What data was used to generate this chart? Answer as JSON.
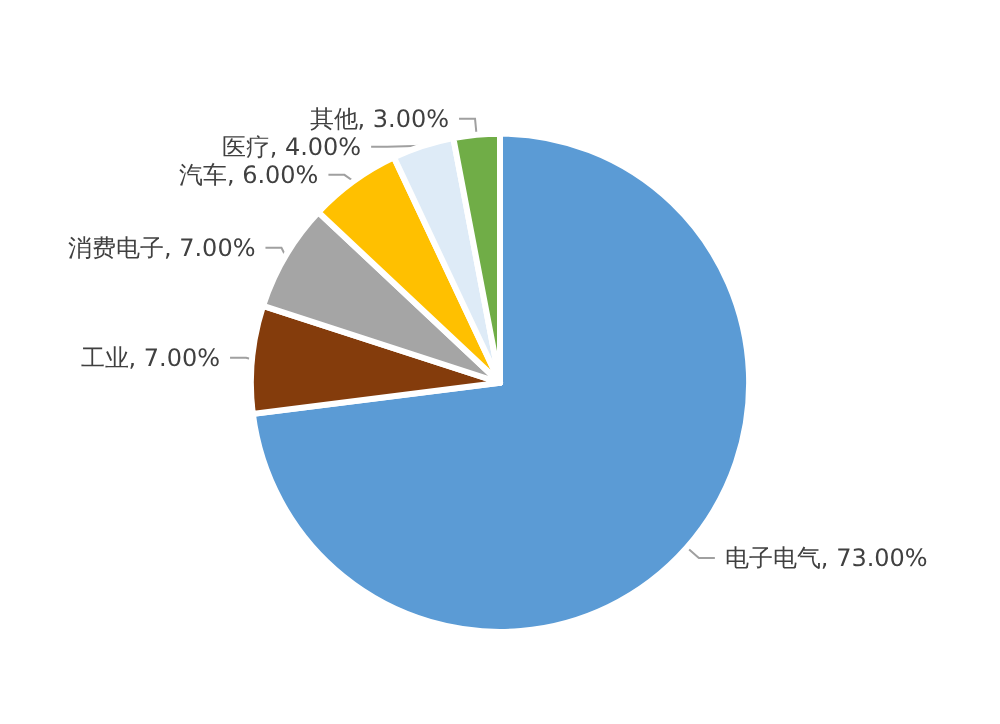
{
  "chart_data": {
    "type": "pie",
    "categories": [
      "电子电气",
      "工业",
      "消费电子",
      "汽车",
      "医疗",
      "其他"
    ],
    "values": [
      73,
      7,
      7,
      6,
      4,
      3
    ],
    "colors": [
      "#5b9bd5",
      "#843c0c",
      "#a5a5a5",
      "#ffc000",
      "#deebf7",
      "#70ad47"
    ],
    "value_labels": [
      "73.00%",
      "7.00%",
      "7.00%",
      "6.00%",
      "4.00%",
      "3.00%"
    ],
    "legend": false
  }
}
